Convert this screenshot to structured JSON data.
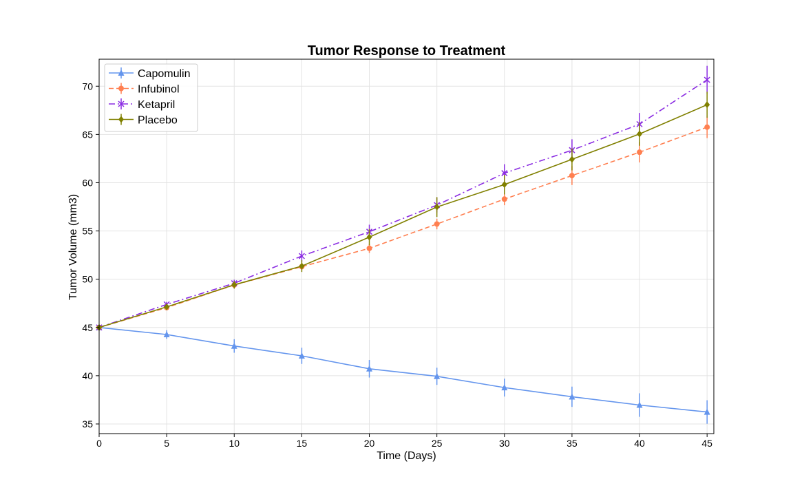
{
  "chart_data": {
    "type": "line",
    "title": "Tumor Response to Treatment",
    "xlabel": "Time (Days)",
    "ylabel": "Tumor Volume (mm3)",
    "x": [
      0,
      5,
      10,
      15,
      20,
      25,
      30,
      35,
      40,
      45
    ],
    "xlim": [
      0,
      45.5
    ],
    "ylim": [
      34.0,
      72.8
    ],
    "xticks": [
      0,
      5,
      10,
      15,
      20,
      25,
      30,
      35,
      40,
      45
    ],
    "yticks": [
      35,
      40,
      45,
      50,
      55,
      60,
      65,
      70
    ],
    "grid": true,
    "legend_position": "upper-left",
    "series": [
      {
        "name": "Capomulin",
        "color": "#6495ed",
        "linestyle": "solid",
        "marker": "triangle",
        "values": [
          45.0,
          44.27,
          43.08,
          42.06,
          40.72,
          39.94,
          38.77,
          37.82,
          36.96,
          36.24
        ],
        "errors": [
          0.0,
          0.45,
          0.7,
          0.84,
          0.91,
          0.89,
          0.93,
          1.05,
          1.22,
          1.22
        ]
      },
      {
        "name": "Infubinol",
        "color": "#ff7f50",
        "linestyle": "dashed",
        "marker": "circle",
        "values": [
          45.0,
          47.06,
          49.4,
          51.3,
          53.2,
          55.72,
          58.3,
          60.74,
          63.16,
          65.76
        ],
        "errors": [
          0.0,
          0.24,
          0.28,
          0.36,
          0.48,
          0.55,
          0.63,
          0.98,
          1.06,
          1.14
        ]
      },
      {
        "name": "Ketapril",
        "color": "#8a2be2",
        "linestyle": "dashdot",
        "marker": "x",
        "values": [
          45.0,
          47.39,
          49.58,
          52.4,
          54.92,
          57.68,
          60.99,
          63.37,
          66.07,
          70.66
        ],
        "errors": [
          0.0,
          0.26,
          0.36,
          0.58,
          0.73,
          0.76,
          0.93,
          1.13,
          1.16,
          1.45
        ]
      },
      {
        "name": "Placebo",
        "color": "#808000",
        "linestyle": "solid",
        "marker": "diamond",
        "values": [
          45.0,
          47.13,
          49.42,
          51.36,
          54.36,
          57.48,
          59.81,
          62.42,
          65.05,
          68.08
        ],
        "errors": [
          0.0,
          0.22,
          0.4,
          0.61,
          0.84,
          1.03,
          1.02,
          1.14,
          1.22,
          1.35
        ]
      }
    ]
  }
}
